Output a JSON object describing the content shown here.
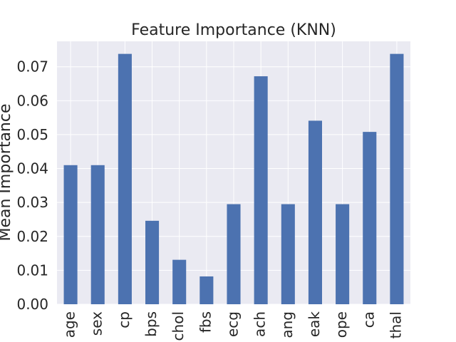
{
  "chart_data": {
    "type": "bar",
    "title": "Feature Importance (KNN)",
    "xlabel": "",
    "ylabel": "Mean Importance",
    "categories": [
      "age",
      "sex",
      "cp",
      "bps",
      "chol",
      "fbs",
      "ecg",
      "ach",
      "ang",
      "eak",
      "ope",
      "ca",
      "thal"
    ],
    "values": [
      0.041,
      0.041,
      0.0738,
      0.0246,
      0.0131,
      0.0082,
      0.0295,
      0.0672,
      0.0295,
      0.0541,
      0.0295,
      0.0508,
      0.0738
    ],
    "ylim": [
      0,
      0.0775
    ],
    "yticks": [
      0.0,
      0.01,
      0.02,
      0.03,
      0.04,
      0.05,
      0.06,
      0.07
    ],
    "ytick_labels": [
      "0.00",
      "0.01",
      "0.02",
      "0.03",
      "0.04",
      "0.05",
      "0.06",
      "0.07"
    ],
    "grid": true,
    "colors": {
      "bar": "#4c72b0",
      "plot_background": "#eaeaf2",
      "grid": "#ffffff",
      "text": "#262626"
    }
  }
}
